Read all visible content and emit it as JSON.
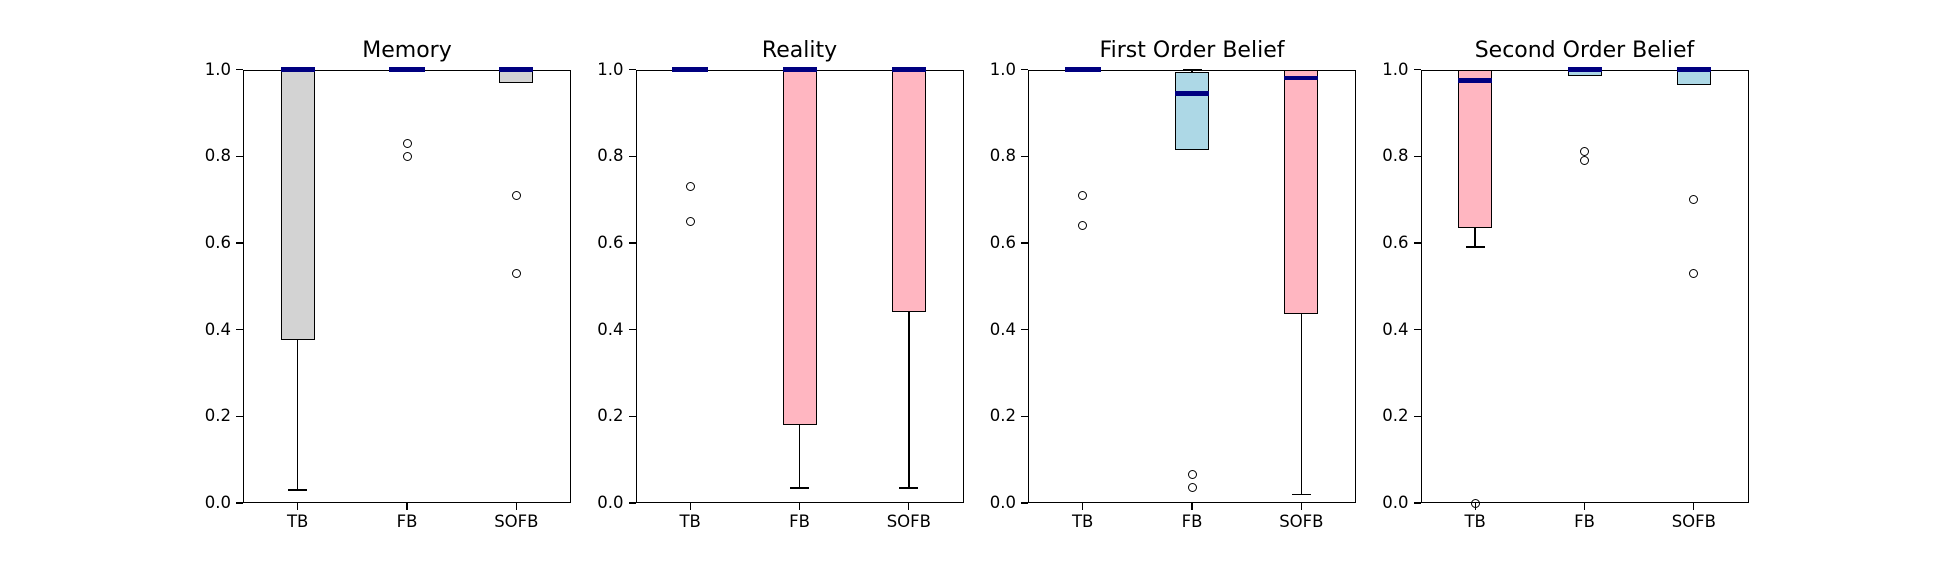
{
  "figure": {
    "background": "#ffffff"
  },
  "palette": {
    "gray": "#d3d3d3",
    "pink": "#ffb6c1",
    "blue": "#add8e6",
    "median": "#000080",
    "edge": "#000000"
  },
  "axis": {
    "ylim": [
      0.0,
      1.0
    ],
    "ytick_labels": [
      "0.0",
      "0.2",
      "0.4",
      "0.6",
      "0.8",
      "1.0"
    ],
    "ytick_values": [
      0.0,
      0.2,
      0.4,
      0.6,
      0.8,
      1.0
    ],
    "categories": [
      "TB",
      "FB",
      "SOFB"
    ]
  },
  "chart_data": [
    {
      "type": "box",
      "title": "Memory",
      "categories": [
        "TB",
        "FB",
        "SOFB"
      ],
      "ylim": [
        0.0,
        1.0
      ],
      "boxes": [
        {
          "label": "TB",
          "color": "gray",
          "q1": 0.375,
          "q3": 1.0,
          "median": 1.0,
          "whisker_low": 0.03,
          "outliers": []
        },
        {
          "label": "FB",
          "color": "gray",
          "collapsed": true,
          "median": 1.0,
          "outliers": [
            0.83,
            0.8
          ]
        },
        {
          "label": "SOFB",
          "color": "gray",
          "q1": 0.97,
          "q3": 1.0,
          "median": 1.0,
          "outliers": [
            0.71,
            0.53
          ]
        }
      ]
    },
    {
      "type": "box",
      "title": "Reality",
      "categories": [
        "TB",
        "FB",
        "SOFB"
      ],
      "ylim": [
        0.0,
        1.0
      ],
      "boxes": [
        {
          "label": "TB",
          "color": "pink",
          "collapsed": true,
          "median": 1.0,
          "outliers": [
            0.73,
            0.65
          ]
        },
        {
          "label": "FB",
          "color": "pink",
          "q1": 0.18,
          "q3": 1.0,
          "median": 1.0,
          "whisker_low": 0.035,
          "outliers": []
        },
        {
          "label": "SOFB",
          "color": "pink",
          "q1": 0.44,
          "q3": 1.0,
          "median": 1.0,
          "whisker_low": 0.035,
          "outliers": []
        }
      ]
    },
    {
      "type": "box",
      "title": "First Order Belief",
      "categories": [
        "TB",
        "FB",
        "SOFB"
      ],
      "ylim": [
        0.0,
        1.0
      ],
      "boxes": [
        {
          "label": "TB",
          "color": "pink",
          "collapsed": true,
          "median": 1.0,
          "outliers": [
            0.71,
            0.64
          ]
        },
        {
          "label": "FB",
          "color": "blue",
          "q1": 0.815,
          "q3": 0.995,
          "median": 0.945,
          "whisker_high": 1.0,
          "outliers": [
            0.065,
            0.035
          ]
        },
        {
          "label": "SOFB",
          "color": "pink",
          "q1": 0.435,
          "q3": 1.0,
          "median": 0.98,
          "whisker_low": 0.02,
          "outliers": []
        }
      ]
    },
    {
      "type": "box",
      "title": "Second Order Belief",
      "categories": [
        "TB",
        "FB",
        "SOFB"
      ],
      "ylim": [
        0.0,
        1.0
      ],
      "boxes": [
        {
          "label": "TB",
          "color": "pink",
          "q1": 0.635,
          "q3": 1.0,
          "median": 0.975,
          "whisker_low": 0.59,
          "outliers": [
            0.0
          ]
        },
        {
          "label": "FB",
          "color": "blue",
          "q1": 0.985,
          "q3": 1.0,
          "median": 1.0,
          "outliers": [
            0.81,
            0.79
          ]
        },
        {
          "label": "SOFB",
          "color": "blue",
          "q1": 0.965,
          "q3": 1.0,
          "median": 1.0,
          "outliers": [
            0.7,
            0.53
          ]
        }
      ]
    }
  ]
}
